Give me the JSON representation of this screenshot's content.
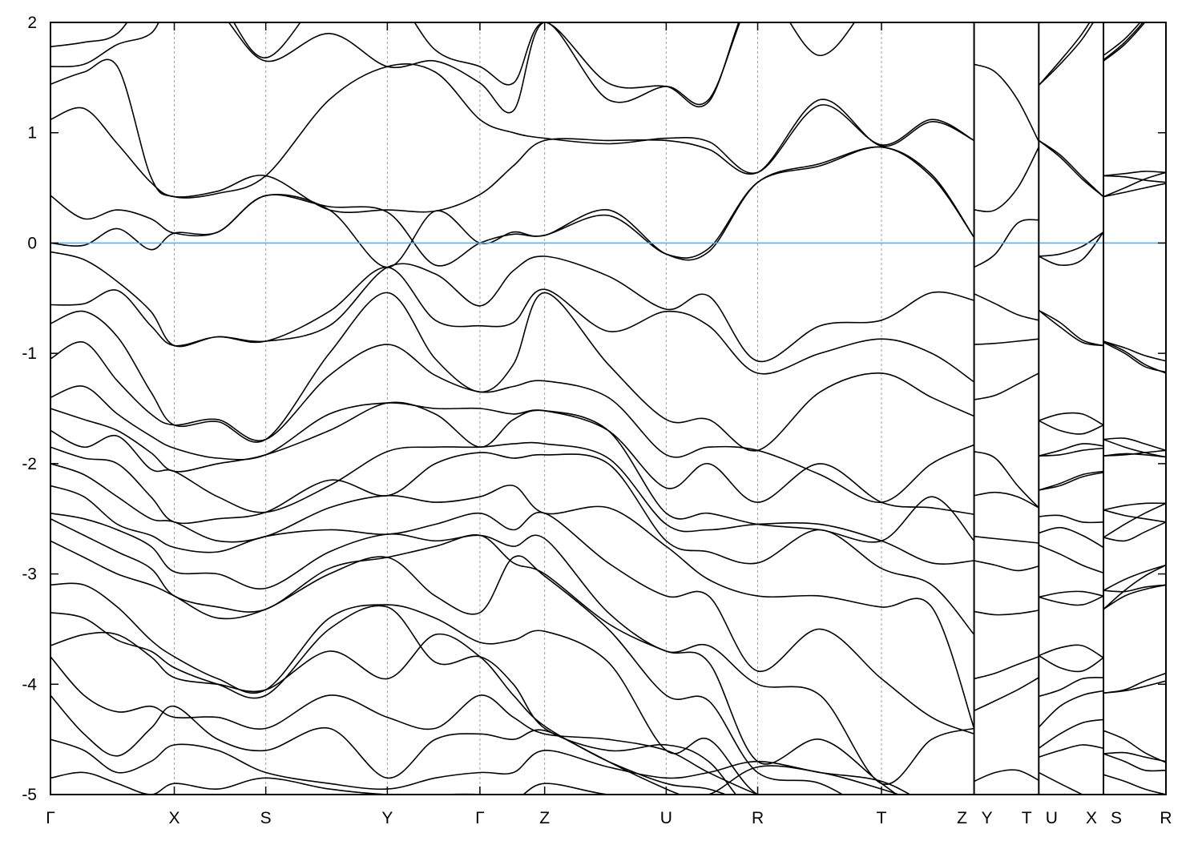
{
  "chart_data": {
    "type": "line",
    "title": "",
    "xlabel": "",
    "ylabel": "",
    "ylim": [
      -5,
      2
    ],
    "xlim": [
      0,
      1
    ],
    "yticks": [
      "-5",
      "-4",
      "-3",
      "-2",
      "-1",
      "0",
      "1",
      "2"
    ],
    "ytick_values": [
      -5,
      -4,
      -3,
      -2,
      -1,
      0,
      1,
      2
    ],
    "grid": "dashed vertical lines at high-symmetry points",
    "fermi_level": 0,
    "colors": {
      "bands": "#000000",
      "fermi_line": "#56b4e9",
      "grid": "#a0a0a0"
    },
    "kpoints": [
      {
        "label": "Γ",
        "k": 0.0
      },
      {
        "label": "X",
        "k": 0.111
      },
      {
        "label": "S",
        "k": 0.193
      },
      {
        "label": "Y",
        "k": 0.302
      },
      {
        "label": "Γ",
        "k": 0.385
      },
      {
        "label": "Z",
        "k": 0.443
      },
      {
        "label": "U",
        "k": 0.552
      },
      {
        "label": "R",
        "k": 0.634
      },
      {
        "label": "T",
        "k": 0.745
      },
      {
        "label": "Z",
        "k": 0.828
      },
      {
        "label": "Y",
        "k": 0.828
      },
      {
        "label": "T",
        "k": 0.886
      },
      {
        "label": "U",
        "k": 0.886
      },
      {
        "label": "X",
        "k": 0.944
      },
      {
        "label": "S",
        "k": 0.944
      },
      {
        "label": "R",
        "k": 1.0
      }
    ],
    "breaks": [
      0.828,
      0.886,
      0.944
    ],
    "segments": [
      {
        "path": "Γ-X-S-Y-Γ-Z-U-R-T-Z",
        "k": [
          0,
          0.03,
          0.06,
          0.09,
          0.111,
          0.15,
          0.193,
          0.25,
          0.302,
          0.345,
          0.385,
          0.415,
          0.443,
          0.5,
          0.552,
          0.59,
          0.634,
          0.69,
          0.745,
          0.79,
          0.828
        ],
        "bands": [
          [
            1.78,
            1.82,
            1.9,
            2.3,
            2.3,
            2.2,
            1.68,
            2.3,
            2.3,
            1.75,
            1.6,
            1.45,
            2.0,
            1.45,
            1.42,
            1.28,
            2.3,
            1.7,
            2.3,
            2.3,
            2.3
          ],
          [
            1.6,
            1.62,
            1.8,
            1.9,
            2.2,
            2.1,
            1.65,
            1.9,
            1.6,
            1.65,
            1.45,
            1.2,
            2.0,
            1.3,
            1.42,
            1.3,
            2.3,
            2.2,
            2.3,
            2.3,
            2.3
          ],
          [
            1.44,
            1.55,
            1.6,
            0.6,
            0.42,
            0.45,
            0.61,
            1.3,
            1.6,
            1.55,
            1.12,
            1.0,
            0.95,
            0.9,
            0.95,
            0.92,
            0.64,
            1.25,
            0.89,
            1.12,
            0.93
          ],
          [
            1.12,
            1.22,
            0.9,
            0.55,
            0.42,
            0.47,
            0.61,
            0.3,
            0.3,
            0.29,
            0.44,
            0.7,
            0.93,
            0.93,
            0.93,
            0.85,
            0.64,
            1.3,
            0.88,
            1.1,
            0.93
          ],
          [
            0.43,
            0.22,
            0.3,
            0.22,
            0.09,
            0.1,
            0.43,
            0.3,
            -0.22,
            0.29,
            0.0,
            0.1,
            0.07,
            0.3,
            -0.1,
            -0.08,
            0.55,
            0.72,
            0.87,
            0.62,
            0.05
          ],
          [
            0.0,
            -0.02,
            0.13,
            -0.06,
            0.09,
            0.1,
            0.43,
            0.33,
            0.28,
            -0.2,
            0.0,
            0.08,
            0.07,
            0.25,
            -0.1,
            -0.05,
            0.55,
            0.7,
            0.87,
            0.6,
            0.05
          ],
          [
            -0.08,
            -0.15,
            -0.35,
            -0.62,
            -0.93,
            -0.85,
            -0.89,
            -0.75,
            -0.22,
            -0.28,
            -0.57,
            -0.25,
            -0.12,
            -0.3,
            -0.6,
            -0.48,
            -1.07,
            -0.75,
            -0.7,
            -0.45,
            -0.52
          ],
          [
            -0.56,
            -0.55,
            -0.43,
            -0.75,
            -0.93,
            -0.85,
            -0.89,
            -0.62,
            -0.22,
            -0.7,
            -0.75,
            -0.72,
            -0.42,
            -0.8,
            -0.62,
            -0.75,
            -1.18,
            -1.0,
            -0.87,
            -1.0,
            -1.26
          ],
          [
            -0.73,
            -0.62,
            -0.85,
            -1.35,
            -1.65,
            -1.62,
            -1.78,
            -1.0,
            -0.45,
            -1.05,
            -1.35,
            -1.1,
            -0.45,
            -1.1,
            -1.6,
            -1.6,
            -1.88,
            -1.35,
            -1.18,
            -1.4,
            -1.57
          ],
          [
            -1.05,
            -0.9,
            -1.25,
            -1.55,
            -1.65,
            -1.6,
            -1.78,
            -1.2,
            -0.92,
            -1.2,
            -1.35,
            -1.3,
            -1.25,
            -1.4,
            -1.92,
            -1.85,
            -1.88,
            -2.1,
            -2.35,
            -2.0,
            -1.83
          ],
          [
            -1.4,
            -1.3,
            -1.55,
            -1.75,
            -1.86,
            -1.95,
            -1.92,
            -1.55,
            -1.45,
            -1.5,
            -1.5,
            -1.55,
            -1.52,
            -1.7,
            -2.22,
            -2.0,
            -2.35,
            -2.0,
            -2.35,
            -2.4,
            -2.46
          ],
          [
            -1.5,
            -1.6,
            -1.7,
            -1.9,
            -2.07,
            -2.0,
            -1.92,
            -1.7,
            -1.45,
            -1.55,
            -1.85,
            -1.6,
            -1.52,
            -1.7,
            -2.45,
            -2.45,
            -2.55,
            -2.6,
            -2.7,
            -2.3,
            -2.7
          ],
          [
            -1.7,
            -1.85,
            -1.75,
            -2.05,
            -2.07,
            -2.3,
            -2.44,
            -2.2,
            -1.89,
            -1.85,
            -1.85,
            -1.82,
            -1.82,
            -1.95,
            -2.55,
            -2.6,
            -2.55,
            -2.55,
            -2.7,
            -2.9,
            -2.88
          ],
          [
            -1.85,
            -1.95,
            -2.0,
            -2.3,
            -2.53,
            -2.5,
            -2.44,
            -2.15,
            -2.29,
            -2.0,
            -1.9,
            -1.95,
            -1.92,
            -2.0,
            -2.7,
            -2.8,
            -2.9,
            -2.6,
            -2.95,
            -3.1,
            -3.55
          ],
          [
            -2.0,
            -2.1,
            -2.3,
            -2.5,
            -2.53,
            -2.7,
            -2.66,
            -2.4,
            -2.29,
            -2.35,
            -2.3,
            -2.2,
            -2.45,
            -2.4,
            -2.75,
            -3.05,
            -3.2,
            -3.2,
            -3.3,
            -3.3,
            -4.4
          ],
          [
            -2.2,
            -2.3,
            -2.55,
            -2.65,
            -2.76,
            -2.8,
            -2.66,
            -2.6,
            -2.64,
            -2.55,
            -2.45,
            -2.6,
            -2.45,
            -2.9,
            -3.2,
            -3.2,
            -3.88,
            -3.5,
            -3.95,
            -4.3,
            -4.45
          ],
          [
            -2.45,
            -2.5,
            -2.6,
            -2.75,
            -2.98,
            -3.0,
            -3.13,
            -2.8,
            -2.64,
            -2.7,
            -2.65,
            -2.75,
            -2.68,
            -3.35,
            -3.7,
            -3.65,
            -4.0,
            -4.1,
            -4.9,
            -4.5,
            -4.4
          ],
          [
            -2.5,
            -2.65,
            -2.8,
            -2.95,
            -3.2,
            -3.3,
            -3.32,
            -2.95,
            -2.85,
            -2.75,
            -2.65,
            -2.9,
            -3.0,
            -3.45,
            -3.7,
            -3.8,
            -4.7,
            -4.5,
            -4.9,
            -5.2,
            -5.2
          ],
          [
            -2.7,
            -2.85,
            -3.0,
            -3.1,
            -3.2,
            -3.4,
            -3.32,
            -3.0,
            -2.85,
            -3.2,
            -3.35,
            -2.85,
            -3.02,
            -3.5,
            -4.1,
            -4.15,
            -4.8,
            -4.9,
            -5.2,
            -5.3,
            -5.3
          ],
          [
            -3.1,
            -3.1,
            -3.3,
            -3.6,
            -3.75,
            -3.95,
            -4.05,
            -3.4,
            -3.28,
            -3.4,
            -3.62,
            -3.6,
            -3.52,
            -3.8,
            -4.6,
            -4.5,
            -5.0,
            -5.1,
            -5.3,
            -5.3,
            -5.3
          ],
          [
            -3.35,
            -3.4,
            -3.6,
            -3.7,
            -3.85,
            -4.0,
            -4.1,
            -3.5,
            -3.3,
            -3.8,
            -3.75,
            -4.0,
            -4.4,
            -4.6,
            -4.55,
            -4.7,
            -5.2,
            -5.3,
            -5.3,
            -5.3,
            -5.3
          ],
          [
            -3.65,
            -3.55,
            -3.55,
            -3.75,
            -3.94,
            -4.0,
            -4.05,
            -3.7,
            -3.95,
            -3.55,
            -3.75,
            -4.1,
            -4.38,
            -4.7,
            -4.95,
            -5.1,
            -5.3,
            -5.3,
            -5.3,
            -5.3,
            -5.3
          ],
          [
            -3.75,
            -4.1,
            -4.25,
            -4.2,
            -4.3,
            -4.3,
            -4.4,
            -4.1,
            -4.3,
            -4.4,
            -4.1,
            -4.3,
            -4.45,
            -4.5,
            -4.6,
            -4.8,
            -5.0,
            -5.2,
            -5.3,
            -5.3,
            -5.3
          ],
          [
            -4.1,
            -4.45,
            -4.65,
            -4.4,
            -4.2,
            -4.5,
            -4.6,
            -4.4,
            -4.85,
            -4.5,
            -4.45,
            -4.5,
            -4.42,
            -4.7,
            -4.9,
            -4.95,
            -5.1,
            -5.2,
            -5.3,
            -5.3,
            -5.3
          ],
          [
            -4.5,
            -4.6,
            -4.8,
            -4.7,
            -4.55,
            -4.6,
            -4.8,
            -4.9,
            -4.95,
            -4.85,
            -4.8,
            -4.8,
            -4.6,
            -4.75,
            -4.85,
            -4.8,
            -4.7,
            -4.8,
            -4.88,
            -5.1,
            -5.2
          ],
          [
            -4.85,
            -4.8,
            -4.9,
            -5.0,
            -4.9,
            -4.95,
            -4.85,
            -4.95,
            -5.0,
            -5.0,
            -5.0,
            -5.05,
            -4.9,
            -5.0,
            -5.0,
            -5.0,
            -4.75,
            -4.8,
            -4.95,
            -5.1,
            -5.2
          ]
        ]
      },
      {
        "path": "Y-T",
        "k": [
          0.828,
          0.847,
          0.867,
          0.886
        ],
        "bands": [
          [
            1.62,
            1.55,
            1.3,
            0.92
          ],
          [
            0.3,
            0.3,
            0.5,
            0.87
          ],
          [
            -0.22,
            -0.1,
            0.18,
            0.21
          ],
          [
            -0.46,
            -0.55,
            -0.65,
            -0.7
          ],
          [
            -0.92,
            -0.91,
            -0.89,
            -0.87
          ],
          [
            -1.42,
            -1.38,
            -1.28,
            -1.18
          ],
          [
            -1.89,
            -1.95,
            -2.2,
            -2.4
          ],
          [
            -2.29,
            -2.26,
            -2.3,
            -2.4
          ],
          [
            -2.66,
            -2.68,
            -2.7,
            -2.72
          ],
          [
            -2.88,
            -2.92,
            -2.97,
            -2.93
          ],
          [
            -3.34,
            -3.37,
            -3.36,
            -3.33
          ],
          [
            -3.95,
            -3.9,
            -3.82,
            -3.75
          ],
          [
            -4.24,
            -4.15,
            -4.05,
            -3.94
          ],
          [
            -4.88,
            -4.8,
            -4.78,
            -4.87
          ]
        ]
      },
      {
        "path": "U-X",
        "k": [
          0.886,
          0.905,
          0.925,
          0.944
        ],
        "bands": [
          [
            1.43,
            1.65,
            1.9,
            2.2
          ],
          [
            1.43,
            1.62,
            1.85,
            2.15
          ],
          [
            0.93,
            0.8,
            0.6,
            0.42
          ],
          [
            0.93,
            0.78,
            0.58,
            0.42
          ],
          [
            -0.12,
            -0.1,
            -0.03,
            0.1
          ],
          [
            -0.12,
            -0.2,
            -0.15,
            0.1
          ],
          [
            -0.61,
            -0.72,
            -0.88,
            -0.93
          ],
          [
            -0.61,
            -0.76,
            -0.9,
            -0.93
          ],
          [
            -1.61,
            -1.55,
            -1.55,
            -1.65
          ],
          [
            -1.61,
            -1.7,
            -1.73,
            -1.65
          ],
          [
            -1.93,
            -1.88,
            -1.82,
            -1.84
          ],
          [
            -1.93,
            -1.92,
            -1.88,
            -1.86
          ],
          [
            -2.24,
            -2.18,
            -2.1,
            -2.07
          ],
          [
            -2.24,
            -2.2,
            -2.12,
            -2.08
          ],
          [
            -2.48,
            -2.47,
            -2.53,
            -2.53
          ],
          [
            -2.63,
            -2.58,
            -2.65,
            -2.76
          ],
          [
            -2.74,
            -2.82,
            -2.92,
            -2.99
          ],
          [
            -3.21,
            -3.17,
            -3.16,
            -3.2
          ],
          [
            -3.21,
            -3.26,
            -3.28,
            -3.2
          ],
          [
            -3.74,
            -3.67,
            -3.65,
            -3.76
          ],
          [
            -3.74,
            -3.85,
            -3.88,
            -3.76
          ],
          [
            -4.11,
            -4.05,
            -3.95,
            -3.94
          ],
          [
            -4.39,
            -4.2,
            -4.1,
            -4.06
          ],
          [
            -4.58,
            -4.45,
            -4.35,
            -4.32
          ],
          [
            -4.66,
            -4.6,
            -4.55,
            -4.58
          ],
          [
            -4.8,
            -4.9,
            -5.0,
            -5.1
          ]
        ]
      },
      {
        "path": "S-R",
        "k": [
          0.944,
          0.963,
          0.981,
          1.0
        ],
        "bands": [
          [
            1.7,
            1.85,
            2.05,
            2.3
          ],
          [
            1.65,
            1.8,
            2.0,
            2.25
          ],
          [
            1.66,
            1.82,
            2.02,
            2.28
          ],
          [
            0.61,
            0.63,
            0.65,
            0.64
          ],
          [
            0.61,
            0.6,
            0.57,
            0.55
          ],
          [
            0.42,
            0.5,
            0.58,
            0.64
          ],
          [
            0.42,
            0.46,
            0.5,
            0.54
          ],
          [
            -0.89,
            -0.95,
            -1.02,
            -1.07
          ],
          [
            -0.89,
            -0.98,
            -1.1,
            -1.18
          ],
          [
            -0.9,
            -1.0,
            -1.12,
            -1.17
          ],
          [
            -1.78,
            -1.77,
            -1.82,
            -1.88
          ],
          [
            -1.78,
            -1.85,
            -1.9,
            -1.94
          ],
          [
            -1.93,
            -1.91,
            -1.92,
            -1.94
          ],
          [
            -1.93,
            -1.92,
            -1.9,
            -1.88
          ],
          [
            -2.42,
            -2.38,
            -2.36,
            -2.36
          ],
          [
            -2.42,
            -2.47,
            -2.5,
            -2.53
          ],
          [
            -2.67,
            -2.7,
            -2.62,
            -2.53
          ],
          [
            -2.67,
            -2.55,
            -2.45,
            -2.36
          ],
          [
            -3.15,
            -3.05,
            -2.98,
            -2.92
          ],
          [
            -3.15,
            -3.16,
            -3.12,
            -3.1
          ],
          [
            -3.32,
            -3.2,
            -3.14,
            -3.1
          ],
          [
            -3.32,
            -3.15,
            -3.02,
            -2.92
          ],
          [
            -4.08,
            -4.05,
            -3.97,
            -3.9
          ],
          [
            -4.08,
            -4.06,
            -4.02,
            -3.97
          ],
          [
            -4.42,
            -4.5,
            -4.62,
            -4.71
          ],
          [
            -4.63,
            -4.62,
            -4.66,
            -4.7
          ],
          [
            -4.63,
            -4.7,
            -4.78,
            -4.78
          ],
          [
            -4.82,
            -4.88,
            -4.95,
            -5.0
          ]
        ]
      }
    ]
  }
}
